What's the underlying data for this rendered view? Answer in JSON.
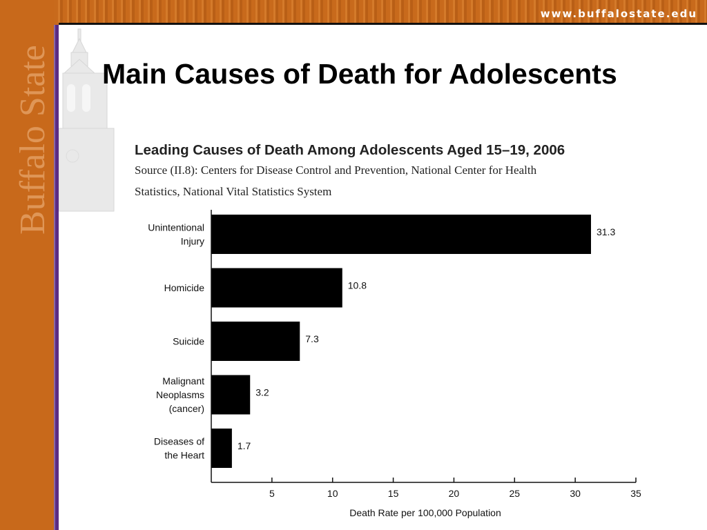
{
  "header": {
    "url": "www.buffalostate.edu",
    "logo_text": "Buffalo State"
  },
  "slide": {
    "title": "Main Causes of Death for Adolescents"
  },
  "colors": {
    "brand_orange": "#c8691b",
    "accent_purple": "#5b2c83",
    "bar": "#000000"
  },
  "chart_data": {
    "type": "bar",
    "orientation": "horizontal",
    "title": "Leading Causes of Death Among Adolescents Aged 15–19, 2006",
    "subtitle_lines": [
      "Source (II.8): Centers for Disease Control and Prevention, National Center for Health",
      "Statistics, National Vital Statistics System"
    ],
    "categories": [
      [
        "Unintentional",
        "Injury"
      ],
      [
        "Homicide"
      ],
      [
        "Suicide"
      ],
      [
        "Malignant",
        "Neoplasms",
        "(cancer)"
      ],
      [
        "Diseases of",
        "the Heart"
      ]
    ],
    "values": [
      31.3,
      10.8,
      7.3,
      3.2,
      1.7
    ],
    "value_labels": [
      "31.3",
      "10.8",
      "7.3",
      "3.2",
      "1.7"
    ],
    "xlabel": "Death Rate per 100,000 Population",
    "ylabel": "",
    "xlim": [
      0,
      35
    ],
    "xticks": [
      5,
      10,
      15,
      20,
      25,
      30,
      35
    ],
    "grid": false,
    "legend": "none"
  }
}
